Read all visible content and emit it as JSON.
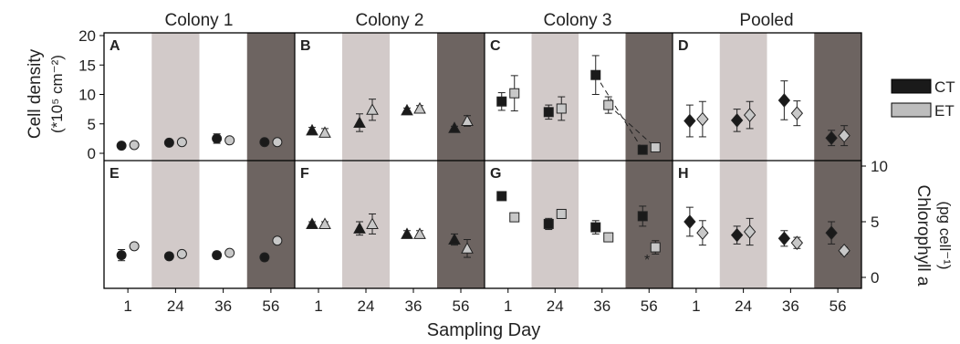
{
  "figure": {
    "columns": [
      "Colony 1",
      "Colony 2",
      "Colony 3",
      "Pooled"
    ],
    "xlabel": "Sampling Day",
    "ylabel_left": [
      "Cell density",
      "(*10⁵ cm⁻²)"
    ],
    "ylabel_right": [
      "Chlorophyll a",
      "(pg cell⁻¹)"
    ],
    "legend": [
      {
        "label": "CT",
        "color": "#1a1a1a"
      },
      {
        "label": "ET",
        "color": "#bdbdbd"
      }
    ],
    "day_ticks": [
      "1",
      "24",
      "36",
      "56"
    ],
    "top_yticks": [
      "0",
      "5",
      "10",
      "15",
      "20"
    ],
    "bottom_yticks": [
      "0",
      "5",
      "10"
    ],
    "annotation": "*",
    "colors": {
      "ct": "#1a1a1a",
      "et": "#c8c8c8",
      "shade_light": "#d2cac9",
      "shade_dark": "#6d6461"
    }
  },
  "chart_data": {
    "type": "scatter",
    "x": [
      "1",
      "24",
      "36",
      "56"
    ],
    "series": [
      {
        "name": "CT"
      },
      {
        "name": "ET"
      }
    ],
    "panels": [
      {
        "label": "A",
        "column": "Colony 1",
        "row": "Cell density",
        "ylim": [
          0,
          20
        ],
        "marker": "circle",
        "ct": [
          1.3,
          1.8,
          2.5,
          1.9
        ],
        "ct_err": [
          0.4,
          0.3,
          0.8,
          0.4
        ],
        "et": [
          1.4,
          1.9,
          2.2,
          1.9
        ],
        "et_err": [
          0.3,
          0.4,
          0.5,
          0.3
        ],
        "line": false
      },
      {
        "label": "B",
        "column": "Colony 2",
        "row": "Cell density",
        "ylim": [
          0,
          20
        ],
        "marker": "triangle",
        "ct": [
          3.9,
          5.2,
          7.3,
          4.3
        ],
        "ct_err": [
          0.5,
          1.5,
          0.4,
          0.3
        ],
        "et": [
          3.5,
          7.4,
          7.6,
          5.5
        ],
        "et_err": [
          0.7,
          1.8,
          0.5,
          0.9
        ],
        "line": false
      },
      {
        "label": "C",
        "column": "Colony 3",
        "row": "Cell density",
        "ylim": [
          0,
          20
        ],
        "marker": "square",
        "ct": [
          8.8,
          7.0,
          13.3,
          0.6
        ],
        "ct_err": [
          1.5,
          1.2,
          3.3,
          0.3
        ],
        "et": [
          10.2,
          7.6,
          8.2,
          1.0
        ],
        "et_err": [
          3.0,
          2.0,
          1.4,
          0.3
        ],
        "line": true
      },
      {
        "label": "D",
        "column": "Pooled",
        "row": "Cell density",
        "ylim": [
          0,
          20
        ],
        "marker": "diamond",
        "ct": [
          5.5,
          5.6,
          9.0,
          2.6
        ],
        "ct_err": [
          2.7,
          1.9,
          3.3,
          1.3
        ],
        "et": [
          5.8,
          6.5,
          6.8,
          3.0
        ],
        "et_err": [
          3.0,
          2.3,
          2.1,
          1.7
        ],
        "line": false
      },
      {
        "label": "E",
        "column": "Colony 1",
        "row": "Chlorophyll a",
        "ylim": [
          0,
          10
        ],
        "marker": "circle",
        "ct": [
          2.0,
          1.9,
          2.0,
          1.8
        ],
        "ct_err": [
          0.5,
          0.2,
          0.3,
          0.3
        ],
        "et": [
          2.8,
          2.1,
          2.2,
          3.3
        ],
        "et_err": [
          0.2,
          0.2,
          0.2,
          0.2
        ],
        "line": false
      },
      {
        "label": "F",
        "column": "Colony 2",
        "row": "Chlorophyll a",
        "ylim": [
          0,
          10
        ],
        "marker": "triangle",
        "ct": [
          4.8,
          4.4,
          3.9,
          3.4
        ],
        "ct_err": [
          0.2,
          0.6,
          0.3,
          0.5
        ],
        "et": [
          4.8,
          4.8,
          3.9,
          2.6
        ],
        "et_err": [
          0.2,
          0.9,
          0.3,
          0.8
        ],
        "line": false
      },
      {
        "label": "G",
        "column": "Colony 3",
        "row": "Chlorophyll a",
        "ylim": [
          0,
          10
        ],
        "marker": "square",
        "ct": [
          7.3,
          4.8,
          4.5,
          5.5
        ],
        "ct_err": [
          0.3,
          0.5,
          0.6,
          0.9
        ],
        "et": [
          5.4,
          5.7,
          3.6,
          2.7
        ],
        "et_err": [
          0.2,
          0.4,
          0.3,
          0.6
        ],
        "line": false
      },
      {
        "label": "H",
        "column": "Pooled",
        "row": "Chlorophyll a",
        "ylim": [
          0,
          10
        ],
        "marker": "diamond",
        "ct": [
          5.0,
          3.8,
          3.5,
          4.0
        ],
        "ct_err": [
          1.3,
          0.8,
          0.7,
          1.0
        ],
        "et": [
          4.0,
          4.1,
          3.1,
          2.4
        ],
        "et_err": [
          1.1,
          1.2,
          0.5,
          0.3
        ],
        "line": false
      }
    ]
  }
}
